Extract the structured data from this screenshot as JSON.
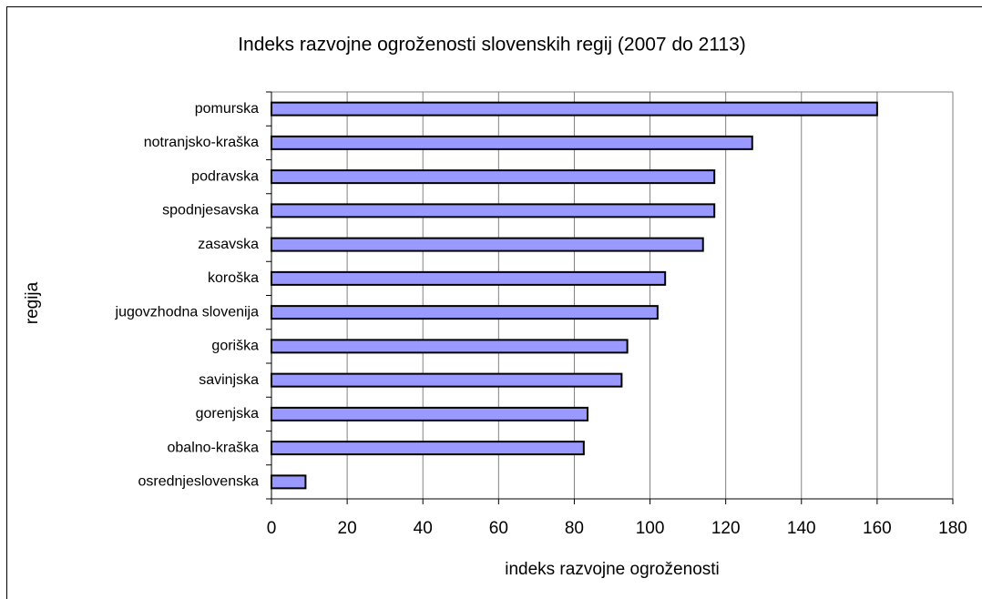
{
  "chart_data": {
    "type": "bar",
    "title": "Indeks razvojne ogroženosti slovenskih regij (2007 do 2113)",
    "x_label": "indeks razvojne ogroženosti",
    "y_label": "regija",
    "categories": [
      "pomurska",
      "notranjsko-kraška",
      "podravska",
      "spodnjesavska",
      "zasavska",
      "koroška",
      "jugovzhodna slovenija",
      "goriška",
      "savinjska",
      "gorenjska",
      "obalno-kraška",
      "osrednjeslovenska"
    ],
    "values": [
      160,
      127,
      117,
      117,
      114,
      104,
      102,
      94,
      92.5,
      83.5,
      82.5,
      9
    ],
    "color": "#9999ff",
    "xlim": [
      0,
      180
    ],
    "xticks": [
      0,
      20,
      40,
      60,
      80,
      100,
      120,
      140,
      160,
      180
    ],
    "grid": true
  }
}
